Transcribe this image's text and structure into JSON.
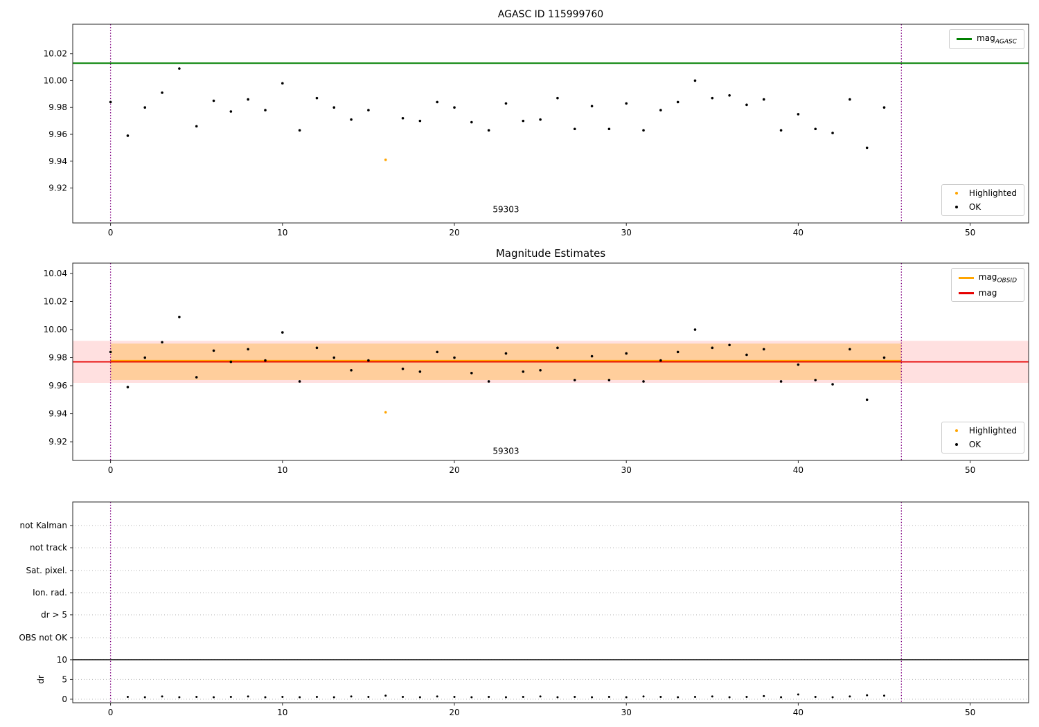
{
  "colors": {
    "agasc_line": "#008000",
    "obsid_line": "#ffa500",
    "mag_line": "#e60000",
    "highlight": "#ffa500",
    "ok": "#000000",
    "vline": "#800080",
    "band_orange": "rgba(255,165,0,0.30)",
    "band_pink": "rgba(255,0,0,0.12)",
    "grid": "#b0b0b0",
    "frame": "#262626"
  },
  "chart_data": [
    {
      "type": "scatter",
      "title": "AGASC ID 115999760",
      "xlim": [
        -2.2,
        53.4
      ],
      "ylim": [
        9.894,
        10.042
      ],
      "xticks": [
        0,
        10,
        20,
        30,
        40,
        50
      ],
      "yticks": [
        9.92,
        9.94,
        9.96,
        9.98,
        10.0,
        10.02
      ],
      "ytick_labels": [
        "9.92",
        "9.94",
        "9.96",
        "9.98",
        "10.00",
        "10.02"
      ],
      "hlines": [
        {
          "value": 10.013,
          "color_key": "agasc_line",
          "width": 2,
          "name": "mag-agasc-line"
        }
      ],
      "vlines": [
        0,
        46
      ],
      "annotation": {
        "text": "59303",
        "x": 23,
        "y": 9.902
      },
      "ok": {
        "x": [
          0,
          1,
          2,
          3,
          4,
          5,
          6,
          7,
          8,
          9,
          10,
          11,
          12,
          13,
          14,
          15,
          17,
          18,
          19,
          20,
          21,
          22,
          23,
          24,
          25,
          26,
          27,
          28,
          29,
          30,
          31,
          32,
          33,
          34,
          35,
          36,
          37,
          38,
          39,
          40,
          41,
          42,
          43,
          44,
          45
        ],
        "y": [
          9.984,
          9.959,
          9.98,
          9.991,
          10.009,
          9.966,
          9.985,
          9.977,
          9.986,
          9.978,
          9.998,
          9.963,
          9.987,
          9.98,
          9.971,
          9.978,
          9.972,
          9.97,
          9.984,
          9.98,
          9.969,
          9.963,
          9.983,
          9.97,
          9.971,
          9.987,
          9.964,
          9.981,
          9.964,
          9.983,
          9.963,
          9.978,
          9.984,
          10.0,
          9.987,
          9.989,
          9.982,
          9.986,
          9.963,
          9.975,
          9.964,
          9.961,
          9.986,
          9.95,
          9.98
        ]
      },
      "highlighted": {
        "x": [
          16
        ],
        "y": [
          9.941
        ]
      },
      "legend_top": [
        {
          "label": "mag",
          "sub": "AGASC",
          "swatch": "line",
          "color_key": "agasc_line"
        }
      ],
      "legend_bottom": [
        {
          "label": "Highlighted",
          "swatch": "dot",
          "color_key": "highlight"
        },
        {
          "label": "OK",
          "swatch": "dot",
          "color_key": "ok"
        }
      ]
    },
    {
      "type": "scatter",
      "title": "Magnitude Estimates",
      "xlim": [
        -2.2,
        53.4
      ],
      "ylim": [
        9.9067,
        10.0474
      ],
      "xticks": [
        0,
        10,
        20,
        30,
        40,
        50
      ],
      "yticks": [
        9.92,
        9.94,
        9.96,
        9.98,
        10.0,
        10.02,
        10.04
      ],
      "ytick_labels": [
        "9.92",
        "9.94",
        "9.96",
        "9.98",
        "10.00",
        "10.02",
        "10.04"
      ],
      "bands": [
        {
          "x0": -2.2,
          "x1": 53.4,
          "y0": 9.962,
          "y1": 9.992,
          "color_key": "band_pink",
          "name": "mag-sigma-band"
        },
        {
          "x0": 0,
          "x1": 46,
          "y0": 9.964,
          "y1": 9.99,
          "color_key": "band_orange",
          "name": "obsid-sigma-band"
        }
      ],
      "hlines": [
        {
          "value": 9.9775,
          "x0": 0,
          "x1": 46,
          "color_key": "obsid_line",
          "width": 3.5,
          "name": "mag-obsid-line"
        },
        {
          "value": 9.977,
          "x0": -2.2,
          "x1": 53.4,
          "color_key": "mag_line",
          "width": 1.8,
          "name": "mag-line"
        }
      ],
      "vlines": [
        0,
        46
      ],
      "annotation": {
        "text": "59303",
        "x": 23,
        "y": 9.9115
      },
      "ok": {
        "x": [
          0,
          1,
          2,
          3,
          4,
          5,
          6,
          7,
          8,
          9,
          10,
          11,
          12,
          13,
          14,
          15,
          17,
          18,
          19,
          20,
          21,
          22,
          23,
          24,
          25,
          26,
          27,
          28,
          29,
          30,
          31,
          32,
          33,
          34,
          35,
          36,
          37,
          38,
          39,
          40,
          41,
          42,
          43,
          44,
          45
        ],
        "y": [
          9.984,
          9.959,
          9.98,
          9.991,
          10.009,
          9.966,
          9.985,
          9.977,
          9.986,
          9.978,
          9.998,
          9.963,
          9.987,
          9.98,
          9.971,
          9.978,
          9.972,
          9.97,
          9.984,
          9.98,
          9.969,
          9.963,
          9.983,
          9.97,
          9.971,
          9.987,
          9.964,
          9.981,
          9.964,
          9.983,
          9.963,
          9.978,
          9.984,
          10.0,
          9.987,
          9.989,
          9.982,
          9.986,
          9.963,
          9.975,
          9.964,
          9.961,
          9.986,
          9.95,
          9.98
        ]
      },
      "highlighted": {
        "x": [
          16
        ],
        "y": [
          9.941
        ]
      },
      "legend_top": [
        {
          "label": "mag",
          "sub": "OBSID",
          "swatch": "line",
          "color_key": "obsid_line"
        },
        {
          "label": "mag",
          "sub": "",
          "swatch": "line",
          "color_key": "mag_line"
        }
      ],
      "legend_bottom": [
        {
          "label": "Highlighted",
          "swatch": "dot",
          "color_key": "highlight"
        },
        {
          "label": "OK",
          "swatch": "dot",
          "color_key": "ok"
        }
      ]
    },
    {
      "type": "flags",
      "xlim": [
        -2.2,
        53.4
      ],
      "ylim": [
        -0.9,
        50.0
      ],
      "xticks": [
        0,
        10,
        20,
        30,
        40,
        50
      ],
      "categories": [
        {
          "label": "not Kalman",
          "value": 44.0
        },
        {
          "label": "not track",
          "value": 38.4
        },
        {
          "label": "Sat. pixel.",
          "value": 32.6
        },
        {
          "label": "Ion. rad.",
          "value": 27.0
        },
        {
          "label": "dr > 5",
          "value": 21.4
        },
        {
          "label": "OBS not OK",
          "value": 15.6
        }
      ],
      "dr_ticks": [
        {
          "label": "10",
          "value": 10
        },
        {
          "label": "5",
          "value": 5
        },
        {
          "label": "0",
          "value": 0
        }
      ],
      "ylabel": "dr",
      "hline_solid": 10,
      "vlines": [
        0,
        46
      ],
      "dr_points": {
        "x": [
          1,
          2,
          3,
          4,
          5,
          6,
          7,
          8,
          9,
          10,
          11,
          12,
          13,
          14,
          15,
          16,
          17,
          18,
          19,
          20,
          21,
          22,
          23,
          24,
          25,
          26,
          27,
          28,
          29,
          30,
          31,
          32,
          33,
          34,
          35,
          36,
          37,
          38,
          39,
          40,
          41,
          42,
          43,
          44,
          45
        ],
        "y": [
          0.6,
          0.5,
          0.7,
          0.5,
          0.6,
          0.5,
          0.6,
          0.7,
          0.5,
          0.6,
          0.5,
          0.6,
          0.5,
          0.7,
          0.6,
          0.9,
          0.6,
          0.5,
          0.7,
          0.6,
          0.5,
          0.6,
          0.5,
          0.6,
          0.7,
          0.5,
          0.6,
          0.5,
          0.6,
          0.5,
          0.7,
          0.6,
          0.5,
          0.6,
          0.7,
          0.5,
          0.6,
          0.8,
          0.5,
          1.2,
          0.6,
          0.5,
          0.7,
          1.0,
          0.9
        ]
      }
    }
  ]
}
